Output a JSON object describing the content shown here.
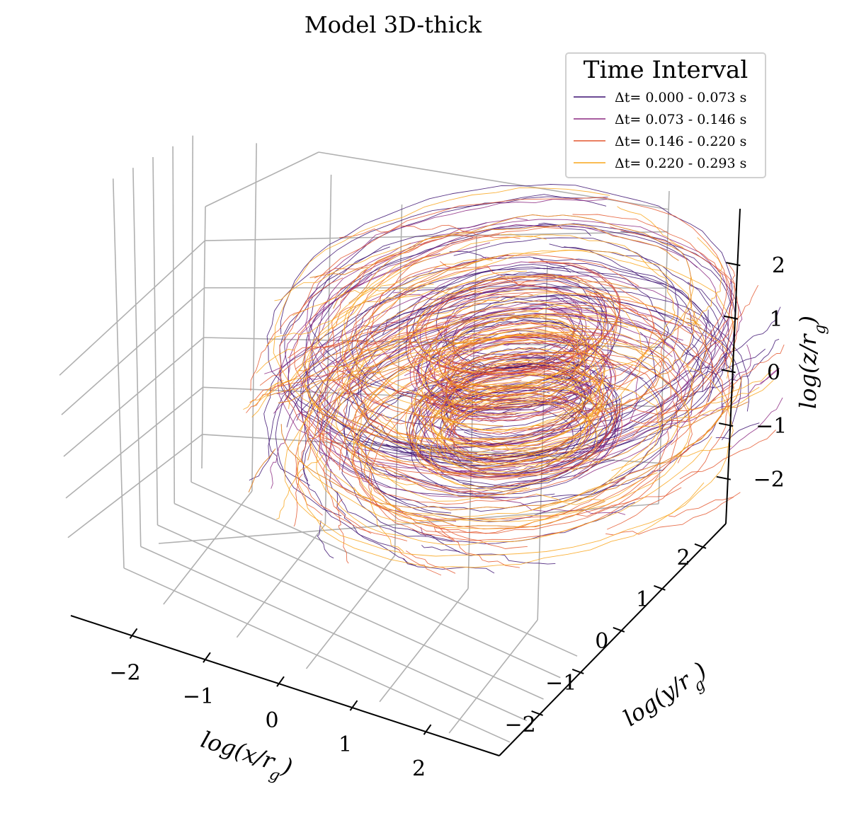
{
  "chart_data": {
    "type": "3d-line",
    "title": "Model 3D-thick",
    "xlabel": "log(x/r_g)",
    "ylabel": "log(y/r_g)",
    "zlabel": "log(z/r_g)",
    "xlim": [
      -2.7,
      2.7
    ],
    "ylim": [
      -2.7,
      2.7
    ],
    "zlim": [
      -2.7,
      2.7
    ],
    "x_ticks": [
      -2,
      -1,
      0,
      1,
      2
    ],
    "x_tick_labels": [
      "−2",
      "−1",
      "0",
      "1",
      "2"
    ],
    "y_ticks": [
      -2,
      -1,
      0,
      1,
      2
    ],
    "y_tick_labels": [
      "−2",
      "−1",
      "0",
      "1",
      "2"
    ],
    "z_ticks": [
      -2,
      -1,
      0,
      1,
      2
    ],
    "z_tick_labels": [
      "−2",
      "−1",
      "0",
      "1",
      "2"
    ],
    "grid": true,
    "legend": {
      "title": "Time Interval",
      "placement": "top-right",
      "entries": [
        {
          "label": "Δt= 0.000 - 0.073 s",
          "color": "#3b0f70"
        },
        {
          "label": "Δt= 0.073 - 0.146 s",
          "color": "#8c2981"
        },
        {
          "label": "Δt= 0.146 - 0.220 s",
          "color": "#e4572e"
        },
        {
          "label": "Δt= 0.220 - 0.293 s",
          "color": "#f9a51a"
        }
      ]
    },
    "series": [
      {
        "name": "Δt= 0.000 - 0.073 s",
        "color": "#3b0f70",
        "t_range": [
          0.0,
          0.073
        ],
        "line_count": 90
      },
      {
        "name": "Δt= 0.073 - 0.146 s",
        "color": "#8c2981",
        "t_range": [
          0.073,
          0.146
        ],
        "line_count": 90
      },
      {
        "name": "Δt= 0.146 - 0.220 s",
        "color": "#e4572e",
        "t_range": [
          0.146,
          0.22
        ],
        "line_count": 90
      },
      {
        "name": "Δt= 0.220 - 0.293 s",
        "color": "#f9a51a",
        "t_range": [
          0.22,
          0.293
        ],
        "line_count": 90
      }
    ],
    "structure": {
      "inner_ring_radius": 0.8,
      "outer_torus_radius": 1.8,
      "outer_filament_radius": 2.6,
      "z_extent": [
        -1.2,
        1.2
      ]
    }
  }
}
